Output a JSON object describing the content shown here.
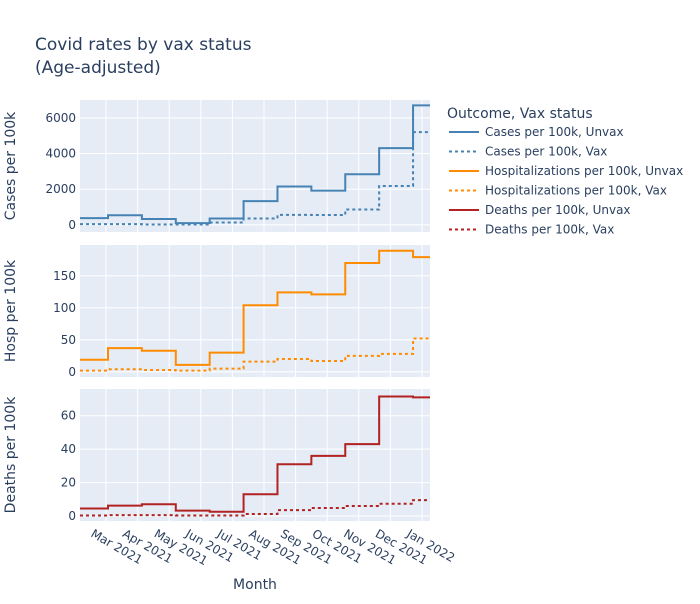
{
  "chart_data": {
    "type": "line",
    "line_shape": "step",
    "title": "Covid rates by vax status",
    "subtitle": "(Age-adjusted)",
    "xlabel": "Month",
    "legend_title": "Outcome, Vax status",
    "legend_position": "right",
    "x_ticks": [
      "Mar 2021",
      "Apr 2021",
      "May 2021",
      "Jun 2021",
      "Jul 2021",
      "Aug 2021",
      "Sep 2021",
      "Oct 2021",
      "Nov 2021",
      "Dec 2021",
      "Jan 2022"
    ],
    "x": [
      "Feb 2021",
      "Mar 2021",
      "Apr 2021",
      "May 2021",
      "Jun 2021",
      "Jul 2021",
      "Aug 2021",
      "Sep 2021",
      "Oct 2021",
      "Nov 2021",
      "Dec 2021"
    ],
    "panels": [
      {
        "ylabel": "Cases per 100k",
        "yticks": [
          0,
          2000,
          4000,
          6000
        ],
        "ylim": [
          -400,
          7000
        ],
        "series": [
          {
            "name": "Cases per 100k, Unvax",
            "color": "#4682b4",
            "dash": "solid",
            "values": [
              380,
              540,
              330,
              100,
              360,
              1330,
              2150,
              1920,
              2840,
              4300,
              6700
            ]
          },
          {
            "name": "Cases per 100k, Vax",
            "color": "#4682b4",
            "dash": "dot",
            "values": [
              40,
              40,
              20,
              20,
              130,
              360,
              560,
              550,
              860,
              2180,
              5200
            ]
          }
        ]
      },
      {
        "ylabel": "Hosp per 100k",
        "yticks": [
          0,
          50,
          100,
          150
        ],
        "ylim": [
          -8,
          198
        ],
        "series": [
          {
            "name": "Hospitalizations per 100k, Unvax",
            "color": "#ff8c00",
            "dash": "solid",
            "values": [
              19,
              37,
              33,
              11,
              30,
              104,
              124,
              121,
              170,
              189,
              179
            ]
          },
          {
            "name": "Hospitalizations per 100k, Vax",
            "color": "#ff8c00",
            "dash": "dot",
            "values": [
              2,
              4,
              3,
              2,
              5,
              16,
              20,
              17,
              25,
              28,
              52
            ]
          }
        ]
      },
      {
        "ylabel": "Deaths per 100k",
        "yticks": [
          0,
          20,
          40,
          60
        ],
        "ylim": [
          -3,
          76
        ],
        "series": [
          {
            "name": "Deaths per 100k, Unvax",
            "color": "#b22222",
            "dash": "solid",
            "values": [
              4.5,
              6.2,
              7,
              3.2,
              2.5,
              13,
              31,
              36,
              43,
              71.5,
              71
            ]
          },
          {
            "name": "Deaths per 100k, Vax",
            "color": "#b22222",
            "dash": "dot",
            "values": [
              0.3,
              0.5,
              0.5,
              0.3,
              0.3,
              1.2,
              3.5,
              4.8,
              6,
              7.3,
              9.5
            ]
          }
        ]
      }
    ]
  }
}
